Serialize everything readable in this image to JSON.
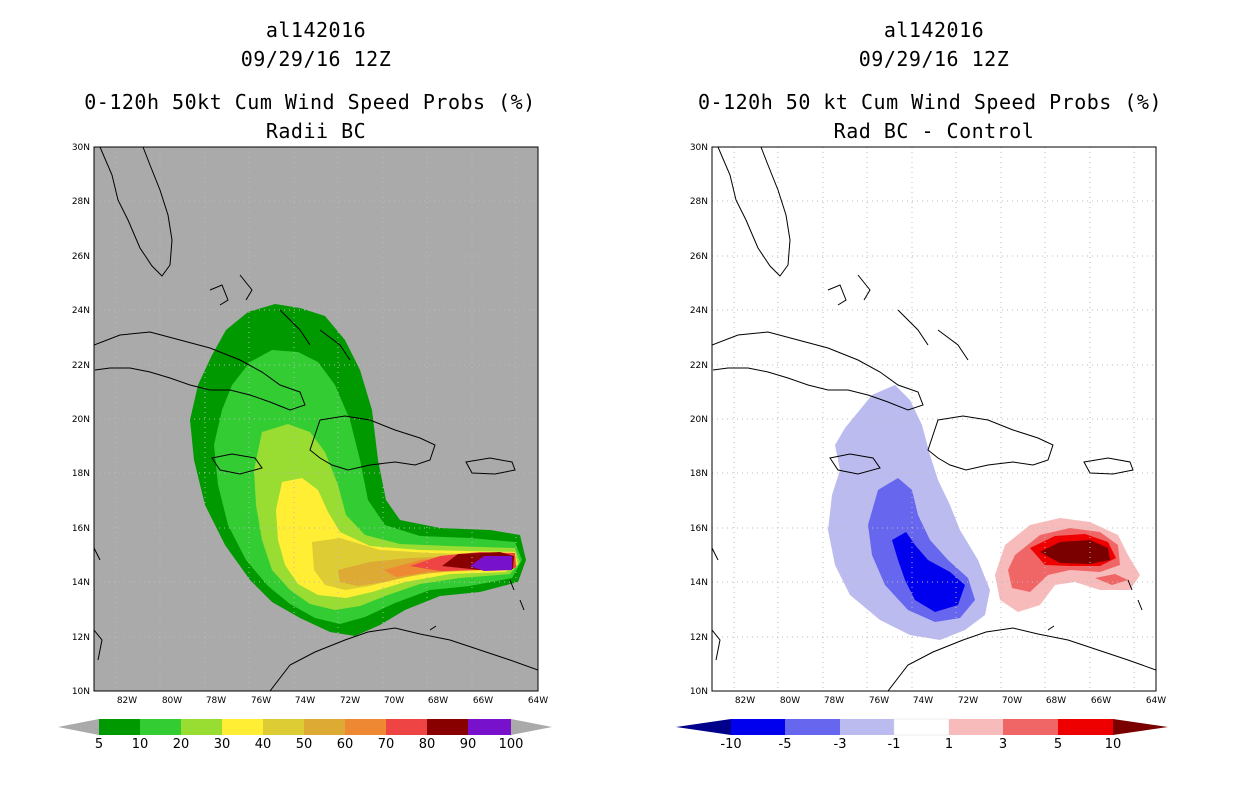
{
  "left": {
    "storm_id": "al142016",
    "datetime": "09/29/16 12Z",
    "title": "0-120h 50kt Cum Wind Speed Probs (%)",
    "subtitle": "Radii BC",
    "colorbar": {
      "labels": [
        "5",
        "10",
        "20",
        "30",
        "40",
        "50",
        "60",
        "70",
        "80",
        "90",
        "100"
      ],
      "colors": [
        "#009900",
        "#33cc33",
        "#99dd33",
        "#ffee33",
        "#ddcc33",
        "#ddaa33",
        "#ee8833",
        "#ee4444",
        "#880000",
        "#7711cc"
      ],
      "under_color": "#aaaaaa",
      "over_color": "#aaaaaa"
    }
  },
  "right": {
    "storm_id": "al142016",
    "datetime": "09/29/16 12Z",
    "title": "0-120h 50 kt Cum Wind Speed Probs (%)",
    "subtitle": "Rad BC - Control",
    "colorbar": {
      "labels": [
        "-10",
        "-5",
        "-3",
        "-1",
        "1",
        "3",
        "5",
        "10"
      ],
      "colors": [
        "#0000ee",
        "#6666ee",
        "#bbbbf0",
        "#ffffff",
        "#f8bbbb",
        "#f06666",
        "#ee0000"
      ],
      "under_color": "#00008b",
      "over_color": "#7a0000"
    }
  },
  "map": {
    "lat_labels": [
      "30N",
      "28N",
      "26N",
      "24N",
      "22N",
      "20N",
      "18N",
      "16N",
      "14N",
      "12N",
      "10N"
    ],
    "lon_labels": [
      "82W",
      "80W",
      "78W",
      "76W",
      "74W",
      "72W",
      "70W",
      "68W",
      "66W",
      "64W"
    ],
    "lon_range": [
      -84,
      -64
    ],
    "lat_range": [
      10,
      30
    ],
    "background_left": "#aaaaaa",
    "grid_color": "#bbbbbb"
  }
}
